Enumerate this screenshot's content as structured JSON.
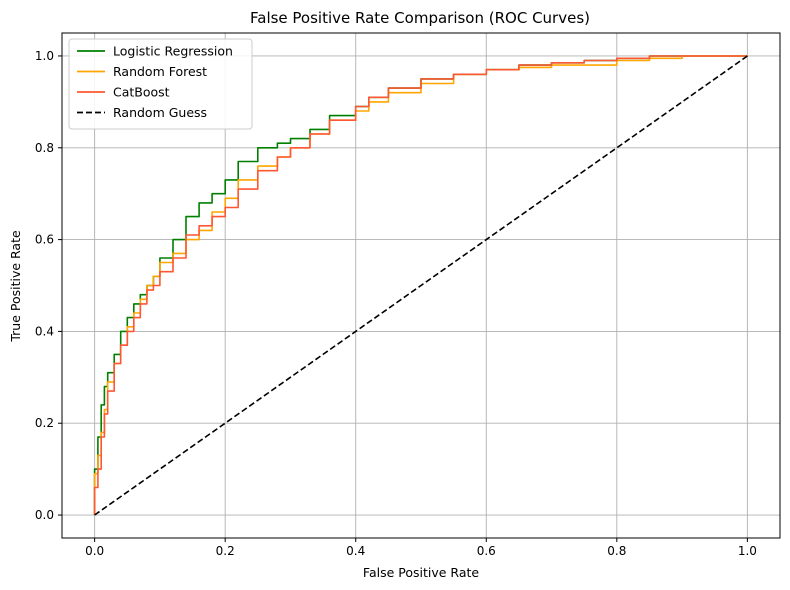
{
  "chart_data": {
    "type": "line",
    "title": "False Positive Rate Comparison (ROC Curves)",
    "xlabel": "False Positive Rate",
    "ylabel": "True Positive Rate",
    "xlim": [
      -0.05,
      1.05
    ],
    "ylim": [
      -0.05,
      1.05
    ],
    "xticks": [
      0.0,
      0.2,
      0.4,
      0.6,
      0.8,
      1.0
    ],
    "yticks": [
      0.0,
      0.2,
      0.4,
      0.6,
      0.8,
      1.0
    ],
    "xtick_labels": [
      "0.0",
      "0.2",
      "0.4",
      "0.6",
      "0.8",
      "1.0"
    ],
    "ytick_labels": [
      "0.0",
      "0.2",
      "0.4",
      "0.6",
      "0.8",
      "1.0"
    ],
    "grid": true,
    "legend_position": "top-left",
    "series": [
      {
        "name": "Logistic Regression",
        "color": "#008000",
        "dash": "solid",
        "x": [
          0.0,
          0.005,
          0.01,
          0.015,
          0.02,
          0.03,
          0.04,
          0.05,
          0.06,
          0.07,
          0.08,
          0.09,
          0.1,
          0.12,
          0.14,
          0.16,
          0.18,
          0.2,
          0.22,
          0.25,
          0.28,
          0.3,
          0.33,
          0.36,
          0.4,
          0.42,
          0.45,
          0.5,
          0.55,
          0.6,
          0.65,
          0.7,
          0.75,
          0.8,
          0.85,
          0.9,
          0.95,
          1.0
        ],
        "y": [
          0.0,
          0.1,
          0.17,
          0.24,
          0.28,
          0.31,
          0.35,
          0.4,
          0.43,
          0.46,
          0.48,
          0.5,
          0.52,
          0.56,
          0.6,
          0.65,
          0.68,
          0.7,
          0.73,
          0.77,
          0.8,
          0.81,
          0.82,
          0.84,
          0.87,
          0.89,
          0.91,
          0.93,
          0.95,
          0.96,
          0.97,
          0.98,
          0.985,
          0.99,
          0.995,
          1.0,
          1.0,
          1.0
        ]
      },
      {
        "name": "Random Forest",
        "color": "#ffa500",
        "dash": "solid",
        "x": [
          0.0,
          0.005,
          0.01,
          0.015,
          0.02,
          0.03,
          0.04,
          0.05,
          0.06,
          0.07,
          0.08,
          0.09,
          0.1,
          0.12,
          0.14,
          0.16,
          0.18,
          0.2,
          0.22,
          0.25,
          0.28,
          0.3,
          0.33,
          0.36,
          0.4,
          0.42,
          0.45,
          0.5,
          0.55,
          0.6,
          0.65,
          0.7,
          0.75,
          0.8,
          0.85,
          0.9,
          0.95,
          1.0
        ],
        "y": [
          0.0,
          0.09,
          0.13,
          0.18,
          0.23,
          0.29,
          0.33,
          0.37,
          0.41,
          0.44,
          0.47,
          0.5,
          0.52,
          0.55,
          0.57,
          0.6,
          0.62,
          0.66,
          0.69,
          0.73,
          0.76,
          0.78,
          0.8,
          0.83,
          0.86,
          0.88,
          0.9,
          0.92,
          0.94,
          0.96,
          0.97,
          0.975,
          0.98,
          0.98,
          0.99,
          0.995,
          1.0,
          1.0
        ]
      },
      {
        "name": "CatBoost",
        "color": "#ff5733",
        "dash": "solid",
        "x": [
          0.0,
          0.005,
          0.01,
          0.015,
          0.02,
          0.03,
          0.04,
          0.05,
          0.06,
          0.07,
          0.08,
          0.09,
          0.1,
          0.12,
          0.14,
          0.16,
          0.18,
          0.2,
          0.22,
          0.25,
          0.28,
          0.3,
          0.33,
          0.36,
          0.4,
          0.42,
          0.45,
          0.5,
          0.55,
          0.6,
          0.65,
          0.7,
          0.75,
          0.8,
          0.85,
          0.9,
          0.95,
          1.0
        ],
        "y": [
          0.0,
          0.06,
          0.1,
          0.17,
          0.22,
          0.27,
          0.33,
          0.37,
          0.4,
          0.43,
          0.46,
          0.49,
          0.5,
          0.53,
          0.56,
          0.61,
          0.63,
          0.65,
          0.67,
          0.71,
          0.75,
          0.78,
          0.8,
          0.83,
          0.86,
          0.89,
          0.91,
          0.93,
          0.95,
          0.96,
          0.97,
          0.98,
          0.985,
          0.99,
          0.995,
          1.0,
          1.0,
          1.0
        ]
      },
      {
        "name": "Random Guess",
        "color": "#000000",
        "dash": "dashed",
        "x": [
          0.0,
          1.0
        ],
        "y": [
          0.0,
          1.0
        ]
      }
    ]
  }
}
